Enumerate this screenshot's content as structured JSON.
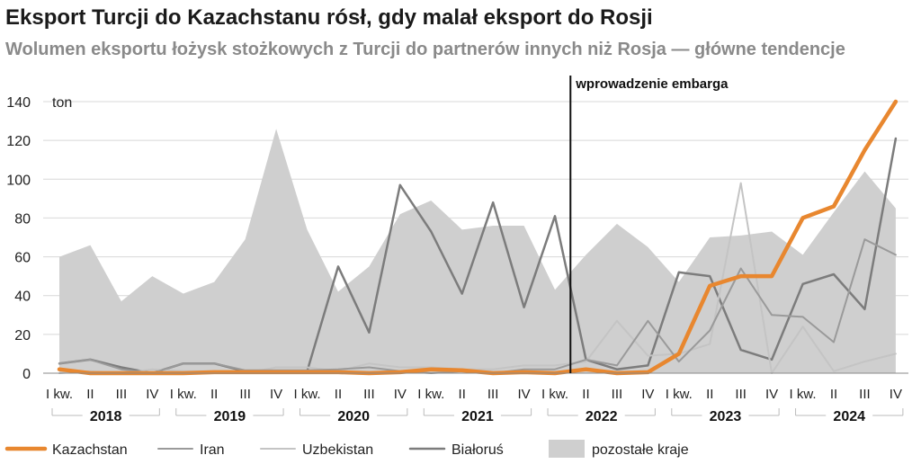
{
  "title": "Eksport Turcji do Kazachstanu rósł, gdy malał eksport do Rosji",
  "subtitle": "Wolumen eksportu łożysk stożkowych z Turcji do partnerów innych niż Rosja — główne tendencje",
  "colors": {
    "kazachstan": "#e8872f",
    "iran": "#9a9a9a",
    "uzbekistan": "#c4c4c4",
    "bialorus": "#7c7c7c",
    "pozostale": "#cfcfcf",
    "grid": "#d8d8d8",
    "embargo": "#111111"
  },
  "chart_data": {
    "type": "line",
    "ylabel": "ton",
    "ylim": [
      0,
      140
    ],
    "yticks": [
      0,
      20,
      40,
      60,
      80,
      100,
      120,
      140
    ],
    "grid": true,
    "legend_position": "bottom",
    "categories": [
      "I kw.",
      "II",
      "III",
      "IV",
      "I kw.",
      "II",
      "III",
      "IV",
      "I kw.",
      "II",
      "III",
      "IV",
      "I kw.",
      "II",
      "III",
      "IV",
      "I kw.",
      "II",
      "III",
      "IV",
      "I kw.",
      "II",
      "III",
      "IV",
      "I kw.",
      "II",
      "III",
      "IV"
    ],
    "years": [
      "2018",
      "2019",
      "2020",
      "2021",
      "2022",
      "2023",
      "2024"
    ],
    "annotation": {
      "label": "wprowadzenie embarga",
      "position": 16.5
    },
    "area_series": {
      "name": "pozostałe kraje",
      "values": [
        60,
        66,
        37,
        50,
        41,
        47,
        69,
        126,
        74,
        42,
        55,
        82,
        89,
        74,
        76,
        76,
        43,
        61,
        77,
        65,
        47,
        70,
        71,
        73,
        61,
        83,
        104,
        85
      ]
    },
    "series": [
      {
        "name": "Kazachstan",
        "values": [
          2,
          0,
          0,
          0,
          0,
          0.5,
          0.5,
          0.5,
          0.5,
          0.5,
          0,
          0.5,
          2,
          1.5,
          0,
          0.5,
          0,
          2,
          0,
          0.5,
          10,
          45,
          50,
          50,
          80,
          86,
          115,
          140
        ]
      },
      {
        "name": "Iran",
        "values": [
          5,
          7,
          2,
          0,
          5,
          5,
          1.5,
          1.5,
          1.5,
          2,
          3,
          1,
          0,
          1,
          0,
          2,
          2,
          7,
          4,
          27,
          6,
          22,
          54,
          30,
          29,
          16,
          69,
          61
        ]
      },
      {
        "name": "Uzbekistan",
        "values": [
          0,
          1,
          0,
          2,
          1,
          1,
          0,
          3,
          3,
          1,
          5,
          3,
          3,
          2,
          2,
          4,
          4,
          6,
          27,
          9,
          10,
          15,
          98,
          0,
          24,
          1,
          6,
          10
        ]
      },
      {
        "name": "Białoruś",
        "values": [
          5,
          7,
          3,
          0,
          5,
          5,
          1,
          1,
          1,
          55,
          21,
          97,
          73,
          41,
          88,
          34,
          81,
          7,
          2,
          4,
          52,
          50,
          12,
          7,
          46,
          51,
          33,
          121
        ]
      }
    ]
  }
}
